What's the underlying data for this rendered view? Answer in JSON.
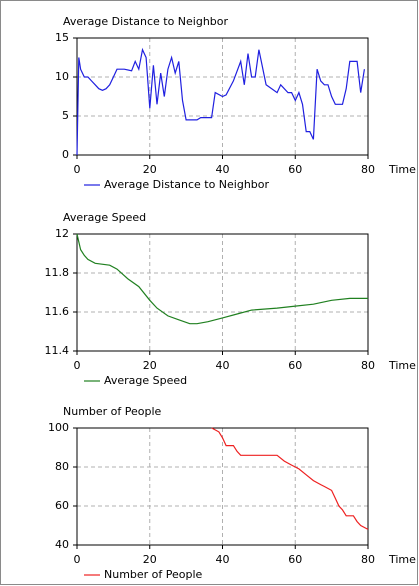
{
  "chart_data": [
    {
      "type": "line",
      "title": "Average Distance to Neighbor",
      "x_label": "Time",
      "x": [
        0,
        0.5,
        1,
        2,
        3,
        4,
        5,
        6,
        7,
        8,
        9,
        10,
        11,
        12,
        13,
        15,
        16,
        17,
        18,
        19,
        20,
        21,
        22,
        23,
        24,
        25,
        26,
        27,
        28,
        29,
        30,
        33,
        34,
        37,
        38,
        40,
        41,
        43,
        45,
        46,
        47,
        48,
        49,
        50,
        52,
        55,
        56,
        58,
        59,
        60,
        61,
        62,
        63,
        64,
        65,
        66,
        67,
        68,
        69,
        70,
        71,
        73,
        74,
        75,
        77,
        78,
        79
      ],
      "series": [
        {
          "name": "Average Distance to Neighbor",
          "color": "#2020e0",
          "values": [
            0,
            12.5,
            11,
            10,
            10,
            9.5,
            9,
            8.5,
            8.3,
            8.5,
            9,
            10,
            11,
            11,
            11,
            10.8,
            12,
            11,
            13.5,
            12.5,
            6,
            11.5,
            6.5,
            10.5,
            7.5,
            11,
            12.5,
            10.5,
            12,
            7,
            4.5,
            4.5,
            4.8,
            4.8,
            8,
            7.5,
            7.7,
            9.5,
            12,
            9,
            13,
            10,
            10,
            13.5,
            9,
            8,
            9,
            8,
            8,
            7,
            8,
            6.5,
            3,
            3,
            2,
            11,
            9.5,
            9,
            9,
            7.5,
            6.5,
            6.5,
            8.5,
            12,
            12,
            8,
            11
          ]
        }
      ],
      "xlim": [
        0,
        80
      ],
      "ylim": [
        0,
        15
      ],
      "xticks": [
        0,
        20,
        40,
        60,
        80
      ],
      "yticks": [
        0,
        5,
        10,
        15
      ],
      "grid": true
    },
    {
      "type": "line",
      "title": "Average Speed",
      "x_label": "Time",
      "x": [
        0,
        1,
        2,
        3,
        5,
        9,
        11,
        14,
        17,
        20,
        22,
        25,
        28,
        31,
        33,
        36,
        40,
        44,
        48,
        55,
        60,
        65,
        70,
        75,
        80
      ],
      "series": [
        {
          "name": "Average Speed",
          "color": "#208020",
          "values": [
            12,
            11.92,
            11.89,
            11.87,
            11.85,
            11.84,
            11.82,
            11.77,
            11.73,
            11.66,
            11.62,
            11.58,
            11.56,
            11.54,
            11.54,
            11.55,
            11.57,
            11.59,
            11.61,
            11.62,
            11.63,
            11.64,
            11.66,
            11.67,
            11.67
          ]
        }
      ],
      "xlim": [
        0,
        80
      ],
      "ylim": [
        11.4,
        12
      ],
      "xticks": [
        0,
        20,
        40,
        60,
        80
      ],
      "yticks": [
        11.4,
        11.6,
        11.8,
        12
      ],
      "grid": true
    },
    {
      "type": "line",
      "title": "Number of People",
      "x_label": "Time",
      "x": [
        37,
        38,
        39,
        40,
        41,
        43,
        44,
        45,
        55,
        57,
        59,
        61,
        63,
        65,
        67,
        68,
        70,
        71,
        72,
        73,
        74,
        76,
        77,
        78,
        80
      ],
      "series": [
        {
          "name": "Number of People",
          "color": "#ee2020",
          "values": [
            100,
            99,
            98,
            95,
            91,
            91,
            88,
            86,
            86,
            83,
            81,
            79,
            76,
            73,
            71,
            70,
            68,
            64,
            60,
            58,
            55,
            55,
            52,
            50,
            48
          ]
        }
      ],
      "xlim": [
        0,
        80
      ],
      "ylim": [
        40,
        100
      ],
      "xticks": [
        0,
        20,
        40,
        60,
        80
      ],
      "yticks": [
        40,
        60,
        80,
        100
      ],
      "grid": true
    }
  ]
}
